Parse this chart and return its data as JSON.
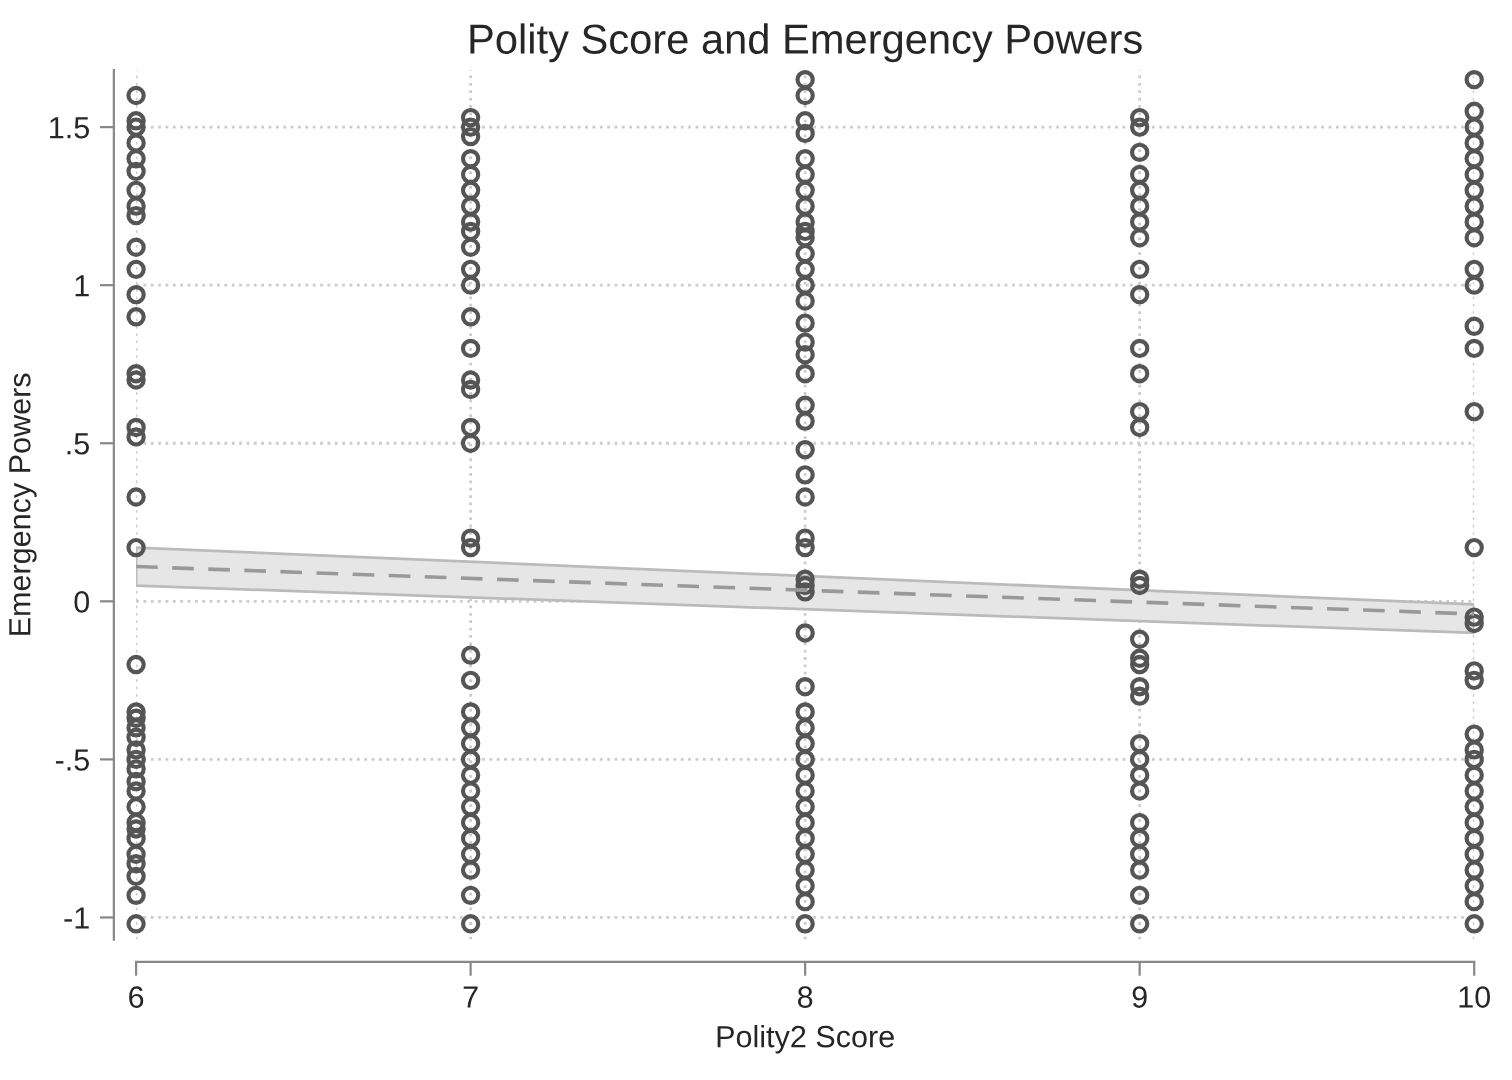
{
  "chart_data": {
    "type": "scatter",
    "title": "Polity Score and Emergency Powers",
    "xlabel": "Polity2 Score",
    "ylabel": "Emergency Powers",
    "xlim": [
      6,
      10
    ],
    "ylim": [
      -1.07,
      1.68
    ],
    "xticks": [
      6,
      7,
      8,
      9,
      10
    ],
    "yticks": [
      {
        "value": -1,
        "label": "-1"
      },
      {
        "value": -0.5,
        "label": "-.5"
      },
      0,
      {
        "value": 0.5,
        "label": ".5"
      },
      1,
      1.5
    ],
    "grid": true,
    "marker": "circle",
    "series": [
      {
        "color": "#555555",
        "x": [
          6,
          6,
          6,
          6,
          6,
          6,
          6,
          6,
          6,
          6,
          6,
          6,
          6,
          6,
          6,
          6,
          6,
          6,
          6,
          6,
          6,
          6,
          6,
          6,
          6,
          6,
          6,
          6,
          6,
          6,
          6,
          6,
          6,
          6,
          6,
          6,
          6,
          6,
          7,
          7,
          7,
          7,
          7,
          7,
          7,
          7,
          7,
          7,
          7,
          7,
          7,
          7,
          7,
          7,
          7,
          7,
          7,
          7,
          7,
          7,
          7,
          7,
          7,
          7,
          7,
          7,
          7,
          7,
          7,
          7,
          7,
          7,
          7,
          8,
          8,
          8,
          8,
          8,
          8,
          8,
          8,
          8,
          8,
          8,
          8,
          8,
          8,
          8,
          8,
          8,
          8,
          8,
          8,
          8,
          8,
          8,
          8,
          8,
          8,
          8,
          8,
          8,
          8,
          8,
          8,
          8,
          8,
          8,
          8,
          8,
          8,
          8,
          8,
          8,
          8,
          8,
          8,
          8,
          9,
          9,
          9,
          9,
          9,
          9,
          9,
          9,
          9,
          9,
          9,
          9,
          9,
          9,
          9,
          9,
          9,
          9,
          9,
          9,
          9,
          9,
          9,
          9,
          9,
          9,
          9,
          9,
          9,
          9,
          9,
          10,
          10,
          10,
          10,
          10,
          10,
          10,
          10,
          10,
          10,
          10,
          10,
          10,
          10,
          10,
          10,
          10,
          10,
          10,
          10,
          10,
          10,
          10,
          10,
          10,
          10,
          10,
          10,
          10,
          10,
          10,
          10,
          10
        ],
        "values": [
          1.6,
          1.52,
          1.5,
          1.45,
          1.4,
          1.36,
          1.3,
          1.25,
          1.22,
          1.12,
          1.05,
          0.97,
          0.9,
          0.72,
          0.7,
          0.55,
          0.52,
          0.33,
          0.17,
          -0.2,
          -0.35,
          -0.37,
          -0.4,
          -0.43,
          -0.47,
          -0.5,
          -0.53,
          -0.57,
          -0.6,
          -0.65,
          -0.7,
          -0.72,
          -0.75,
          -0.8,
          -0.83,
          -0.87,
          -0.93,
          -1.02,
          1.53,
          1.5,
          1.47,
          1.4,
          1.35,
          1.3,
          1.25,
          1.2,
          1.17,
          1.12,
          1.05,
          1.0,
          0.9,
          0.8,
          0.7,
          0.67,
          0.55,
          0.5,
          0.2,
          0.17,
          -0.17,
          -0.25,
          -0.35,
          -0.4,
          -0.45,
          -0.5,
          -0.55,
          -0.6,
          -0.65,
          -0.7,
          -0.75,
          -0.8,
          -0.85,
          -0.93,
          -1.02,
          1.65,
          1.6,
          1.52,
          1.48,
          1.4,
          1.35,
          1.3,
          1.25,
          1.2,
          1.17,
          1.15,
          1.1,
          1.05,
          1.0,
          0.95,
          0.88,
          0.82,
          0.78,
          0.72,
          0.62,
          0.57,
          0.48,
          0.4,
          0.33,
          0.2,
          0.17,
          0.07,
          0.05,
          0.03,
          -0.1,
          -0.27,
          -0.35,
          -0.4,
          -0.45,
          -0.5,
          -0.55,
          -0.6,
          -0.65,
          -0.7,
          -0.75,
          -0.8,
          -0.85,
          -0.9,
          -0.95,
          -1.02,
          1.53,
          1.5,
          1.42,
          1.35,
          1.3,
          1.25,
          1.2,
          1.15,
          1.05,
          0.97,
          0.8,
          0.72,
          0.6,
          0.55,
          0.07,
          0.05,
          -0.12,
          -0.18,
          -0.2,
          -0.27,
          -0.3,
          -0.45,
          -0.5,
          -0.55,
          -0.6,
          -0.7,
          -0.75,
          -0.8,
          -0.85,
          -0.93,
          -1.02,
          1.65,
          1.55,
          1.5,
          1.45,
          1.4,
          1.35,
          1.3,
          1.25,
          1.2,
          1.15,
          1.05,
          1.0,
          0.87,
          0.8,
          0.6,
          0.17,
          -0.05,
          -0.07,
          -0.22,
          -0.25,
          -0.42,
          -0.47,
          -0.5,
          -0.55,
          -0.6,
          -0.65,
          -0.7,
          -0.75,
          -0.8,
          -0.85,
          -0.9,
          -0.95,
          -1.02
        ]
      },
      {
        "type": "line",
        "color": "#999999",
        "line_style": "dashed",
        "marker": "none",
        "x": [
          6,
          10
        ],
        "values": [
          0.11,
          -0.04
        ],
        "lower": [
          0.05,
          -0.1
        ],
        "upper": [
          0.17,
          -0.01
        ]
      }
    ]
  }
}
